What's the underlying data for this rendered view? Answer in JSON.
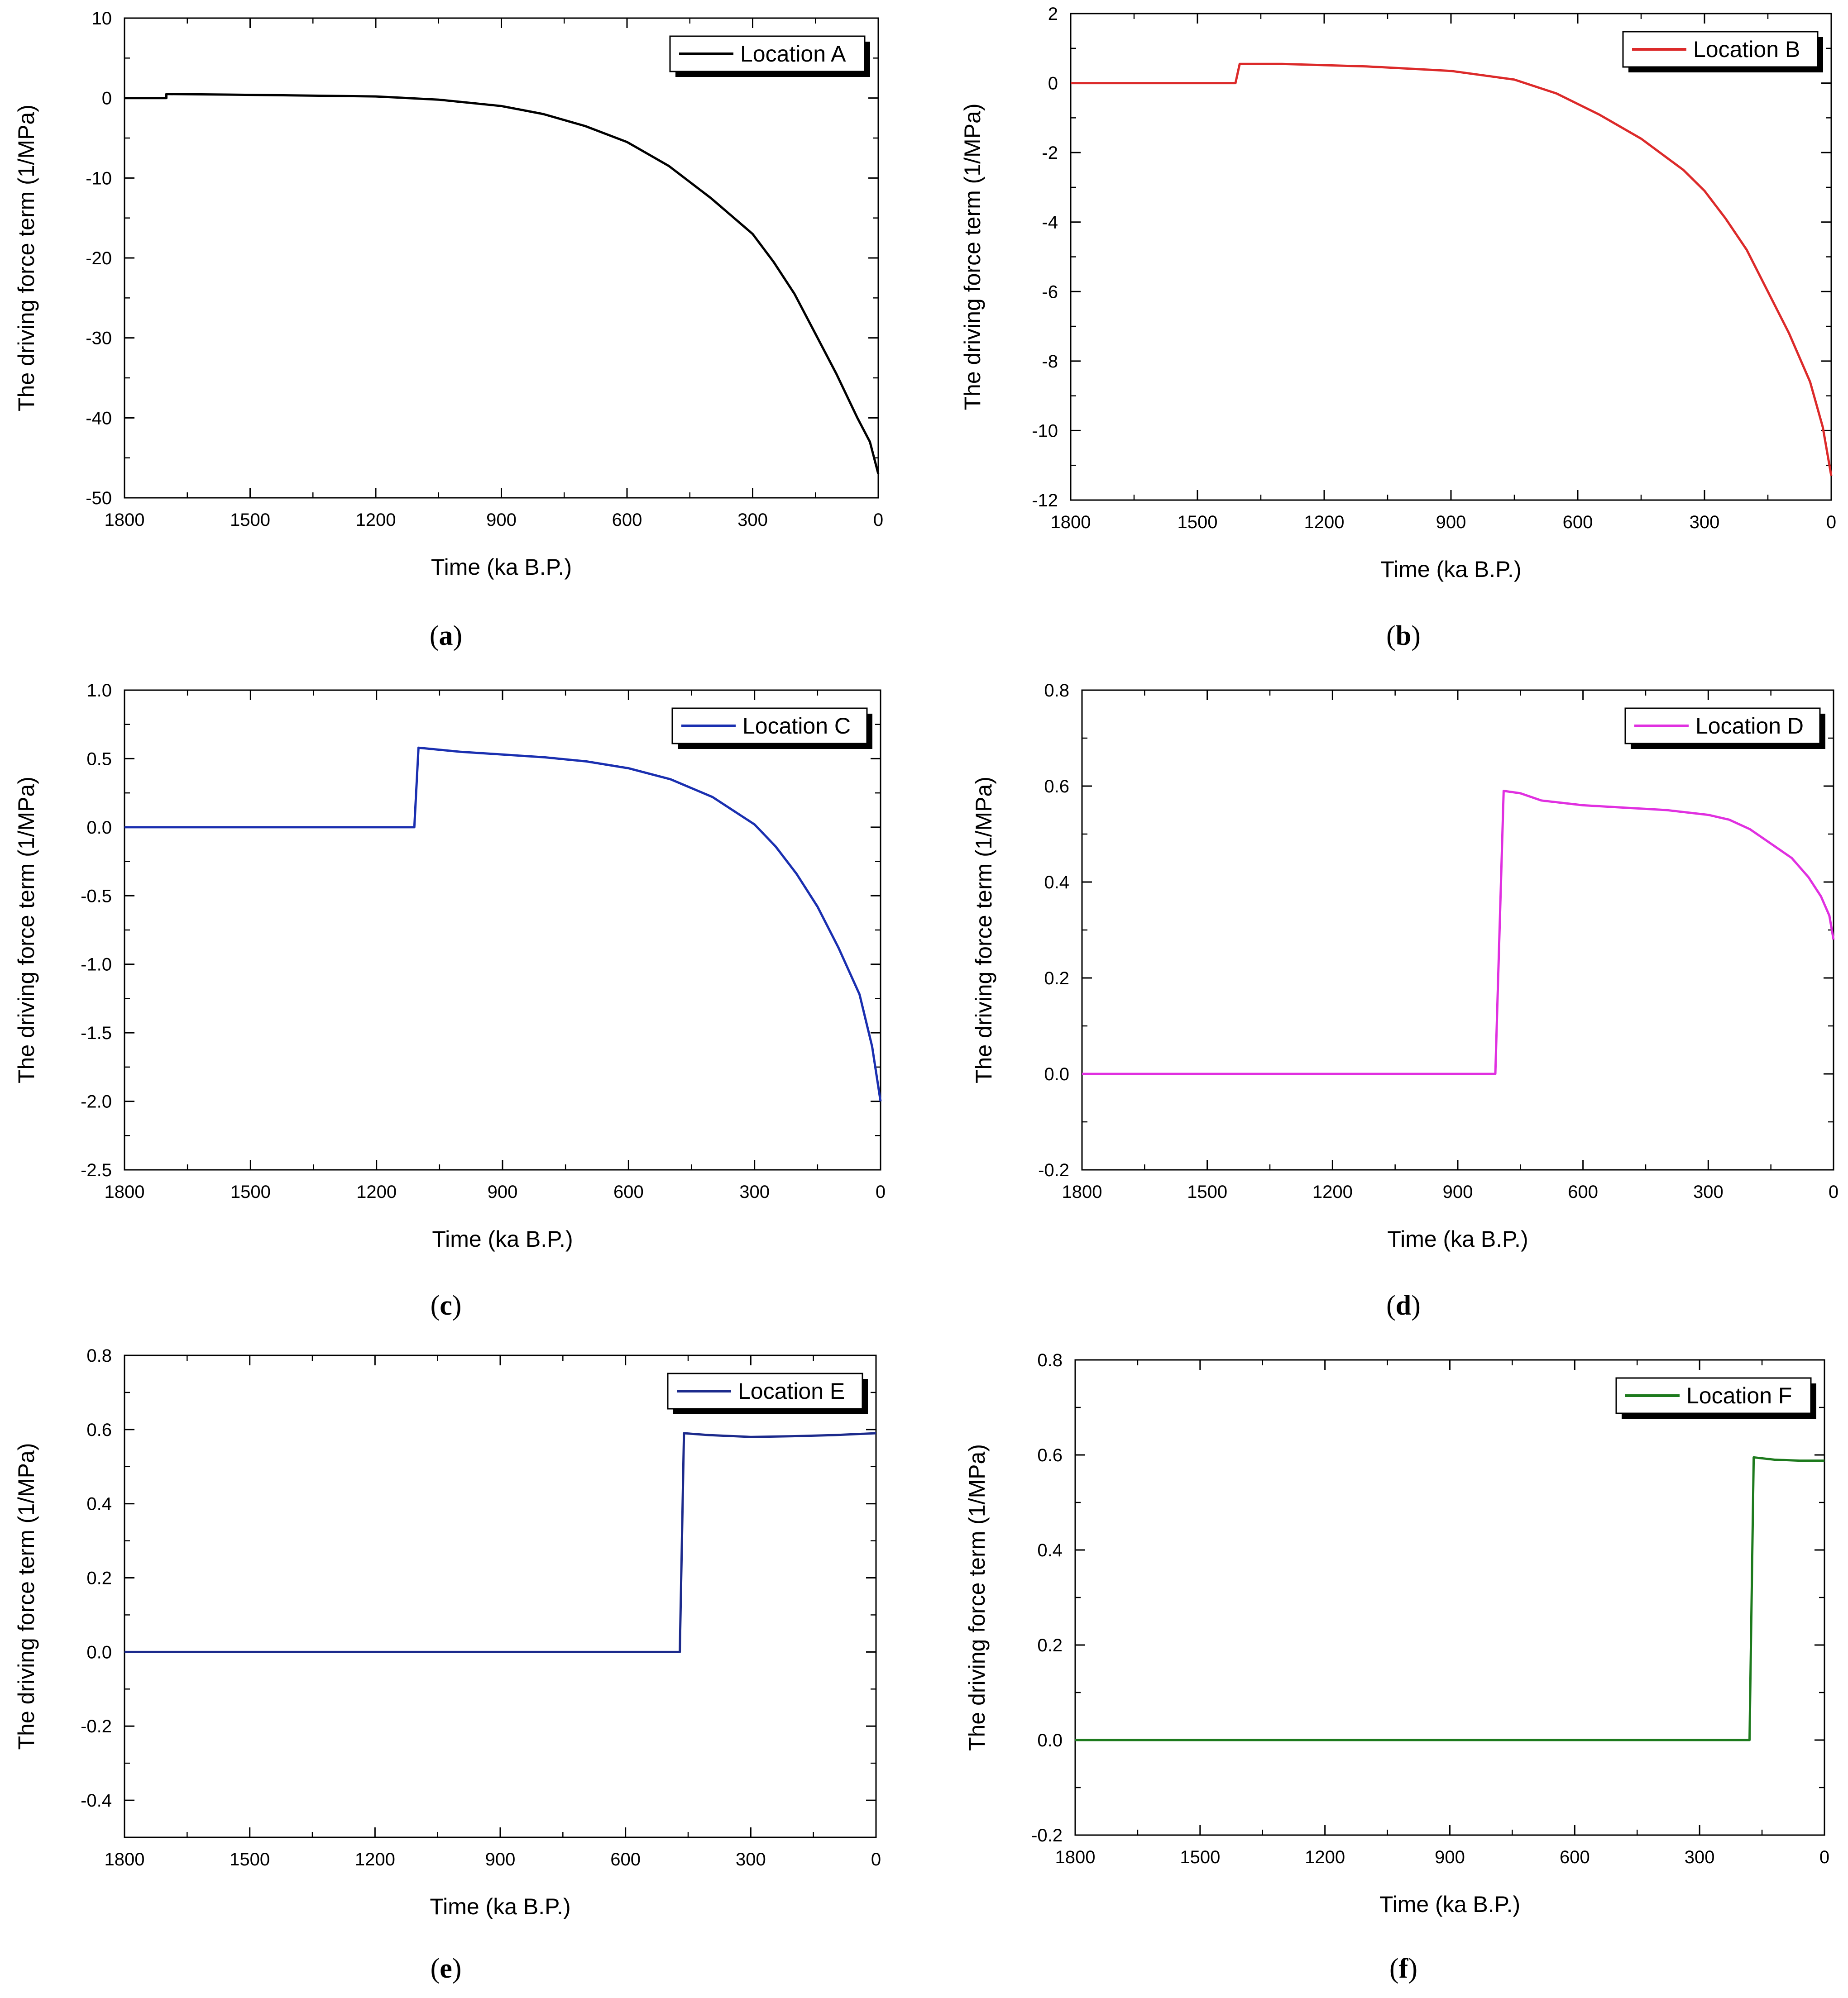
{
  "chart_data": [
    {
      "type": "line",
      "panel": "a",
      "caption_letter": "a",
      "legend": "Location A",
      "color": "#000000",
      "xlabel": "Time (ka B.P.)",
      "ylabel": "The driving force term (1/MPa)",
      "xlim": [
        1800,
        0
      ],
      "ylim": [
        -50,
        10
      ],
      "xticks": [
        1800,
        1500,
        1200,
        900,
        600,
        300,
        0
      ],
      "yticks": [
        10,
        0,
        -10,
        -20,
        -30,
        -40,
        -50
      ],
      "xtick_labels": [
        "1800",
        "1500",
        "1200",
        "900",
        "600",
        "300",
        "0"
      ],
      "ytick_labels": [
        "10",
        "0",
        "-10",
        "-20",
        "-30",
        "-40",
        "-50"
      ],
      "series": [
        {
          "name": "Location A",
          "x": [
            1800,
            1700,
            1700,
            1500,
            1200,
            1050,
            900,
            800,
            700,
            600,
            500,
            400,
            300,
            250,
            200,
            150,
            100,
            50,
            20,
            0
          ],
          "y": [
            0,
            0,
            0.5,
            0.4,
            0.2,
            -0.2,
            -1,
            -2,
            -3.5,
            -5.5,
            -8.5,
            -12.5,
            -17,
            -20.5,
            -24.5,
            -29.5,
            -34.5,
            -40,
            -43,
            -47
          ]
        }
      ]
    },
    {
      "type": "line",
      "panel": "b",
      "caption_letter": "b",
      "legend": "Location B",
      "color": "#dc2a2a",
      "xlabel": "Time (ka B.P.)",
      "ylabel": "The driving force term (1/MPa)",
      "xlim": [
        1800,
        0
      ],
      "ylim": [
        -12,
        2
      ],
      "xticks": [
        1800,
        1500,
        1200,
        900,
        600,
        300,
        0
      ],
      "yticks": [
        2,
        0,
        -2,
        -4,
        -6,
        -8,
        -10,
        -12
      ],
      "xtick_labels": [
        "1800",
        "1500",
        "1200",
        "900",
        "600",
        "300",
        "0"
      ],
      "ytick_labels": [
        "2",
        "0",
        "-2",
        "-4",
        "-6",
        "-8",
        "-10",
        "-12"
      ],
      "series": [
        {
          "name": "Location B",
          "x": [
            1800,
            1410,
            1400,
            1300,
            1100,
            900,
            750,
            650,
            550,
            450,
            350,
            300,
            250,
            200,
            150,
            100,
            50,
            20,
            0
          ],
          "y": [
            0,
            0,
            0.55,
            0.55,
            0.48,
            0.35,
            0.1,
            -0.3,
            -0.9,
            -1.6,
            -2.5,
            -3.1,
            -3.9,
            -4.8,
            -6.0,
            -7.2,
            -8.6,
            -9.9,
            -11.3
          ]
        }
      ]
    },
    {
      "type": "line",
      "panel": "c",
      "caption_letter": "c",
      "legend": "Location C",
      "color": "#1a2fb0",
      "xlabel": "Time (ka B.P.)",
      "ylabel": "The driving force term (1/MPa)",
      "xlim": [
        1800,
        0
      ],
      "ylim": [
        -2.5,
        1.0
      ],
      "xticks": [
        1800,
        1500,
        1200,
        900,
        600,
        300,
        0
      ],
      "yticks": [
        1.0,
        0.5,
        0.0,
        -0.5,
        -1.0,
        -1.5,
        -2.0,
        -2.5
      ],
      "xtick_labels": [
        "1800",
        "1500",
        "1200",
        "900",
        "600",
        "300",
        "0"
      ],
      "ytick_labels": [
        "1.0",
        "0.5",
        "0.0",
        "-0.5",
        "-1.0",
        "-1.5",
        "-2.0",
        "-2.5"
      ],
      "series": [
        {
          "name": "Location C",
          "x": [
            1800,
            1110,
            1100,
            1000,
            900,
            800,
            700,
            600,
            500,
            400,
            350,
            300,
            250,
            200,
            150,
            100,
            50,
            20,
            0
          ],
          "y": [
            0,
            0,
            0.58,
            0.55,
            0.53,
            0.51,
            0.48,
            0.43,
            0.35,
            0.22,
            0.12,
            0.02,
            -0.14,
            -0.34,
            -0.58,
            -0.88,
            -1.22,
            -1.6,
            -2.0
          ]
        }
      ]
    },
    {
      "type": "line",
      "panel": "d",
      "caption_letter": "d",
      "legend": "Location D",
      "color": "#e030e0",
      "xlabel": "Time (ka B.P.)",
      "ylabel": "The driving force term (1/MPa)",
      "xlim": [
        1800,
        0
      ],
      "ylim": [
        -0.2,
        0.8
      ],
      "xticks": [
        1800,
        1500,
        1200,
        900,
        600,
        300,
        0
      ],
      "yticks": [
        0.8,
        0.6,
        0.4,
        0.2,
        0.0,
        -0.2
      ],
      "xtick_labels": [
        "1800",
        "1500",
        "1200",
        "900",
        "600",
        "300",
        "0"
      ],
      "ytick_labels": [
        "0.8",
        "0.6",
        "0.4",
        "0.2",
        "0.0",
        "-0.2"
      ],
      "series": [
        {
          "name": "Location D",
          "x": [
            1800,
            810,
            790,
            750,
            700,
            600,
            500,
            400,
            300,
            250,
            200,
            150,
            100,
            60,
            30,
            10,
            0
          ],
          "y": [
            0,
            0,
            0.59,
            0.585,
            0.57,
            0.56,
            0.555,
            0.55,
            0.54,
            0.53,
            0.51,
            0.48,
            0.45,
            0.41,
            0.37,
            0.33,
            0.28
          ]
        }
      ]
    },
    {
      "type": "line",
      "panel": "e",
      "caption_letter": "e",
      "legend": "Location E",
      "color": "#1c2a8c",
      "xlabel": "Time (ka B.P.)",
      "ylabel": "The driving force term (1/MPa)",
      "xlim": [
        1800,
        0
      ],
      "ylim": [
        -0.5,
        0.8
      ],
      "xticks": [
        1800,
        1500,
        1200,
        900,
        600,
        300,
        0
      ],
      "yticks": [
        0.8,
        0.6,
        0.4,
        0.2,
        0.0,
        -0.2,
        -0.4
      ],
      "xtick_labels": [
        "1800",
        "1500",
        "1200",
        "900",
        "600",
        "300",
        "0"
      ],
      "ytick_labels": [
        "0.8",
        "0.6",
        "0.4",
        "0.2",
        "0.0",
        "-0.2",
        "-0.4"
      ],
      "series": [
        {
          "name": "Location E",
          "x": [
            1800,
            470,
            460,
            400,
            300,
            200,
            100,
            0
          ],
          "y": [
            0,
            0,
            0.59,
            0.585,
            0.58,
            0.582,
            0.585,
            0.59
          ]
        }
      ]
    },
    {
      "type": "line",
      "panel": "f",
      "caption_letter": "f",
      "legend": "Location F",
      "color": "#1d7a1d",
      "xlabel": "Time (ka B.P.)",
      "ylabel": "The driving force term (1/MPa)",
      "xlim": [
        1800,
        0
      ],
      "ylim": [
        -0.2,
        0.8
      ],
      "xticks": [
        1800,
        1500,
        1200,
        900,
        600,
        300,
        0
      ],
      "yticks": [
        0.8,
        0.6,
        0.4,
        0.2,
        0.0,
        -0.2
      ],
      "xtick_labels": [
        "1800",
        "1500",
        "1200",
        "900",
        "600",
        "300",
        "0"
      ],
      "ytick_labels": [
        "0.8",
        "0.6",
        "0.4",
        "0.2",
        "0.0",
        "-0.2"
      ],
      "series": [
        {
          "name": "Location F",
          "x": [
            1800,
            180,
            170,
            120,
            60,
            0
          ],
          "y": [
            0,
            0,
            0.595,
            0.59,
            0.588,
            0.588
          ]
        }
      ]
    }
  ]
}
